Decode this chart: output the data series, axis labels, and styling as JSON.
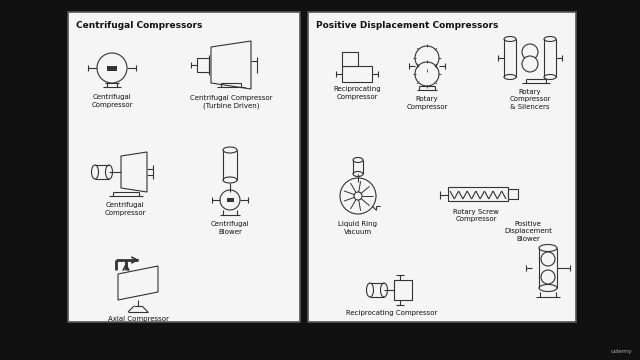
{
  "bg_color": "#111111",
  "panel_bg": "#f5f5f5",
  "panel_edge": "#555555",
  "title_left": "Centrifugal Compressors",
  "title_right": "Positive Displacement Compressors",
  "symbol_color": "#333333",
  "text_color": "#111111",
  "watermark": "udemy",
  "lw": 0.8,
  "fontsize_title": 6.5,
  "fontsize_label": 5.0
}
